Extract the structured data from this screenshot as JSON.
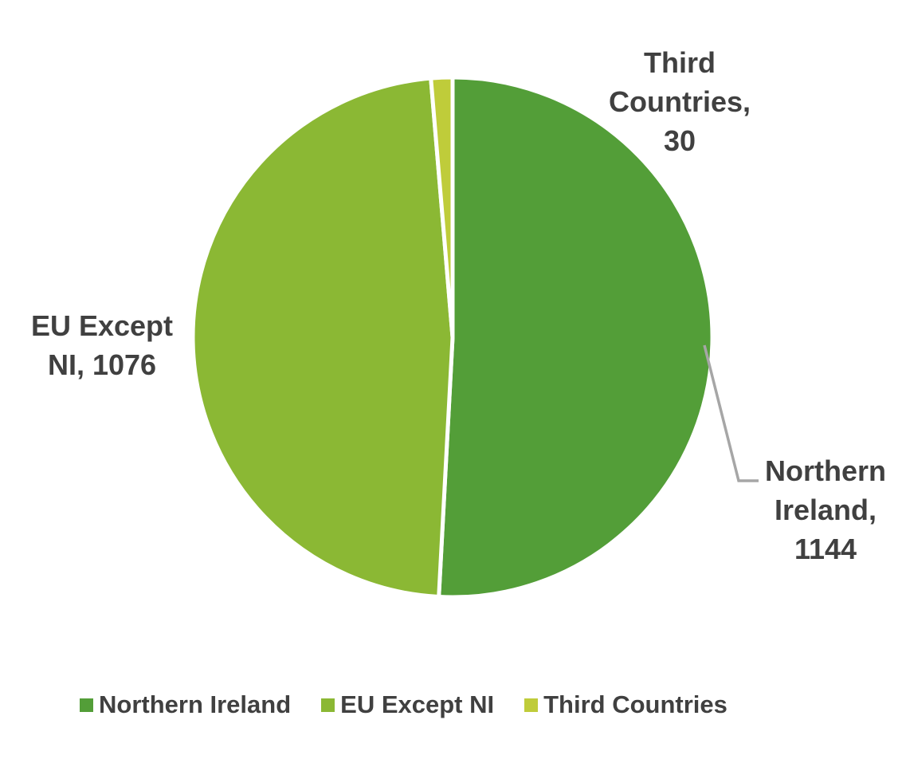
{
  "chart_data": {
    "type": "pie",
    "title": "",
    "categories": [
      "Northern Ireland",
      "EU Except NI",
      "Third Countries"
    ],
    "values": [
      1144,
      1076,
      30
    ],
    "slices": [
      {
        "label": "Northern Ireland",
        "value": 1144,
        "color": "#539E38"
      },
      {
        "label": "EU Except NI",
        "value": 1076,
        "color": "#8BB834"
      },
      {
        "label": "Third Countries",
        "value": 30,
        "color": "#BFCC3A"
      }
    ],
    "start_angle_deg": 0,
    "direction": "clockwise",
    "legend_position": "bottom",
    "data_label_format": "category, value"
  },
  "data_labels": {
    "third_countries": {
      "lines": [
        "Third",
        "Countries,",
        "30"
      ]
    },
    "eu_except_ni": {
      "lines": [
        "EU Except",
        "NI, 1076"
      ]
    },
    "northern_ireland": {
      "lines": [
        "Northern",
        "Ireland,",
        "1144"
      ]
    }
  },
  "colors": {
    "label_text": "#404040",
    "legend_text": "#404040",
    "leader_line": "#A6A6A6",
    "slice_border": "#FFFFFF",
    "background": "#FFFFFF"
  }
}
